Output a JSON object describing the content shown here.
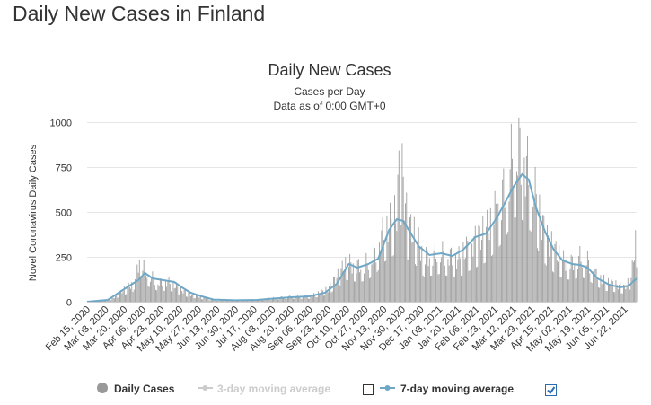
{
  "page": {
    "heading": "Daily New Cases in Finland"
  },
  "chart_data": {
    "type": "bar",
    "title": "Daily New Cases",
    "subtitle": "Cases per Day",
    "subtitle2": "Data as of 0:00 GMT+0",
    "xlabel": "",
    "ylabel": "Novel Coronavirus Daily Cases",
    "ylim": [
      0,
      1000
    ],
    "yticks": [
      0,
      250,
      500,
      750,
      1000
    ],
    "grid": true,
    "x_range": [
      "2020-02-15",
      "2021-07-03"
    ],
    "x_tick_labels": [
      "Feb 15, 2020",
      "Mar 03, 2020",
      "Mar 20, 2020",
      "Apr 06, 2020",
      "Apr 23, 2020",
      "May 10, 2020",
      "May 27, 2020",
      "Jun 13, 2020",
      "Jun 30, 2020",
      "Jul 17, 2020",
      "Aug 03, 2020",
      "Aug 20, 2020",
      "Sep 06, 2020",
      "Sep 23, 2020",
      "Oct 10, 2020",
      "Oct 27, 2020",
      "Nov 13, 2020",
      "Nov 30, 2020",
      "Dec 17, 2020",
      "Jan 03, 2021",
      "Jan 20, 2021",
      "Feb 06, 2021",
      "Feb 23, 2021",
      "Mar 12, 2021",
      "Mar 29, 2021",
      "Apr 15, 2021",
      "May 02, 2021",
      "May 19, 2021",
      "Jun 05, 2021",
      "Jun 22, 2021"
    ],
    "series": [
      {
        "name": "Daily Cases",
        "color": "#999999",
        "kind": "bar",
        "data": [
          [
            "2020-02-25",
            1
          ],
          [
            "2020-03-10",
            20
          ],
          [
            "2020-03-20",
            70
          ],
          [
            "2020-03-28",
            100
          ],
          [
            "2020-04-04",
            260
          ],
          [
            "2020-04-10",
            160
          ],
          [
            "2020-04-20",
            110
          ],
          [
            "2020-05-01",
            110
          ],
          [
            "2020-05-10",
            70
          ],
          [
            "2020-05-20",
            40
          ],
          [
            "2020-05-27",
            30
          ],
          [
            "2020-06-10",
            10
          ],
          [
            "2020-06-25",
            8
          ],
          [
            "2020-07-15",
            8
          ],
          [
            "2020-08-03",
            20
          ],
          [
            "2020-08-20",
            30
          ],
          [
            "2020-09-06",
            30
          ],
          [
            "2020-09-23",
            70
          ],
          [
            "2020-10-10",
            220
          ],
          [
            "2020-10-20",
            200
          ],
          [
            "2020-10-27",
            210
          ],
          [
            "2020-11-05",
            270
          ],
          [
            "2020-11-13",
            400
          ],
          [
            "2020-11-20",
            450
          ],
          [
            "2020-11-25",
            500
          ],
          [
            "2020-11-28",
            830
          ],
          [
            "2020-12-05",
            430
          ],
          [
            "2020-12-12",
            380
          ],
          [
            "2020-12-20",
            250
          ],
          [
            "2021-01-03",
            280
          ],
          [
            "2021-01-20",
            240
          ],
          [
            "2021-01-28",
            300
          ],
          [
            "2021-02-06",
            350
          ],
          [
            "2021-02-15",
            400
          ],
          [
            "2021-02-23",
            500
          ],
          [
            "2021-03-05",
            650
          ],
          [
            "2021-03-12",
            850
          ],
          [
            "2021-03-18",
            860
          ],
          [
            "2021-03-25",
            750
          ],
          [
            "2021-03-29",
            700
          ],
          [
            "2021-04-05",
            480
          ],
          [
            "2021-04-12",
            350
          ],
          [
            "2021-04-20",
            280
          ],
          [
            "2021-04-27",
            230
          ],
          [
            "2021-05-05",
            220
          ],
          [
            "2021-05-12",
            250
          ],
          [
            "2021-05-19",
            230
          ],
          [
            "2021-05-26",
            160
          ],
          [
            "2021-06-05",
            110
          ],
          [
            "2021-06-12",
            100
          ],
          [
            "2021-06-22",
            80
          ],
          [
            "2021-06-28",
            130
          ],
          [
            "2021-07-02",
            350
          ]
        ]
      },
      {
        "name": "3-day moving average",
        "color": "#cccccc",
        "kind": "line",
        "visible": false
      },
      {
        "name": "7-day moving average",
        "color": "#6fa8c7",
        "kind": "line",
        "data": [
          [
            "2020-02-15",
            0
          ],
          [
            "2020-03-05",
            10
          ],
          [
            "2020-03-15",
            50
          ],
          [
            "2020-03-25",
            90
          ],
          [
            "2020-04-02",
            120
          ],
          [
            "2020-04-08",
            160
          ],
          [
            "2020-04-15",
            130
          ],
          [
            "2020-04-25",
            120
          ],
          [
            "2020-05-05",
            110
          ],
          [
            "2020-05-12",
            80
          ],
          [
            "2020-05-20",
            50
          ],
          [
            "2020-05-30",
            30
          ],
          [
            "2020-06-10",
            12
          ],
          [
            "2020-06-30",
            8
          ],
          [
            "2020-07-20",
            10
          ],
          [
            "2020-08-05",
            18
          ],
          [
            "2020-08-20",
            25
          ],
          [
            "2020-09-06",
            30
          ],
          [
            "2020-09-20",
            50
          ],
          [
            "2020-10-01",
            100
          ],
          [
            "2020-10-12",
            210
          ],
          [
            "2020-10-20",
            190
          ],
          [
            "2020-10-30",
            210
          ],
          [
            "2020-11-08",
            240
          ],
          [
            "2020-11-18",
            400
          ],
          [
            "2020-11-25",
            460
          ],
          [
            "2020-12-01",
            450
          ],
          [
            "2020-12-08",
            380
          ],
          [
            "2020-12-15",
            310
          ],
          [
            "2020-12-25",
            260
          ],
          [
            "2021-01-05",
            270
          ],
          [
            "2021-01-15",
            255
          ],
          [
            "2021-01-25",
            290
          ],
          [
            "2021-02-05",
            360
          ],
          [
            "2021-02-15",
            380
          ],
          [
            "2021-02-25",
            470
          ],
          [
            "2021-03-05",
            560
          ],
          [
            "2021-03-12",
            640
          ],
          [
            "2021-03-20",
            710
          ],
          [
            "2021-03-26",
            680
          ],
          [
            "2021-04-02",
            520
          ],
          [
            "2021-04-10",
            390
          ],
          [
            "2021-04-18",
            290
          ],
          [
            "2021-04-26",
            230
          ],
          [
            "2021-05-05",
            210
          ],
          [
            "2021-05-12",
            205
          ],
          [
            "2021-05-19",
            190
          ],
          [
            "2021-05-28",
            130
          ],
          [
            "2021-06-08",
            95
          ],
          [
            "2021-06-18",
            80
          ],
          [
            "2021-06-26",
            90
          ],
          [
            "2021-07-03",
            130
          ]
        ]
      }
    ],
    "legend": {
      "placement": "bottom",
      "items": [
        {
          "label": "Daily Cases",
          "marker": "circle",
          "color": "#999999",
          "active": true
        },
        {
          "label": "3-day moving average",
          "marker": "line",
          "color": "#cccccc",
          "active": false
        },
        {
          "label": "7-day moving average",
          "marker": "line",
          "color": "#6fa8c7",
          "active": true
        }
      ]
    }
  }
}
